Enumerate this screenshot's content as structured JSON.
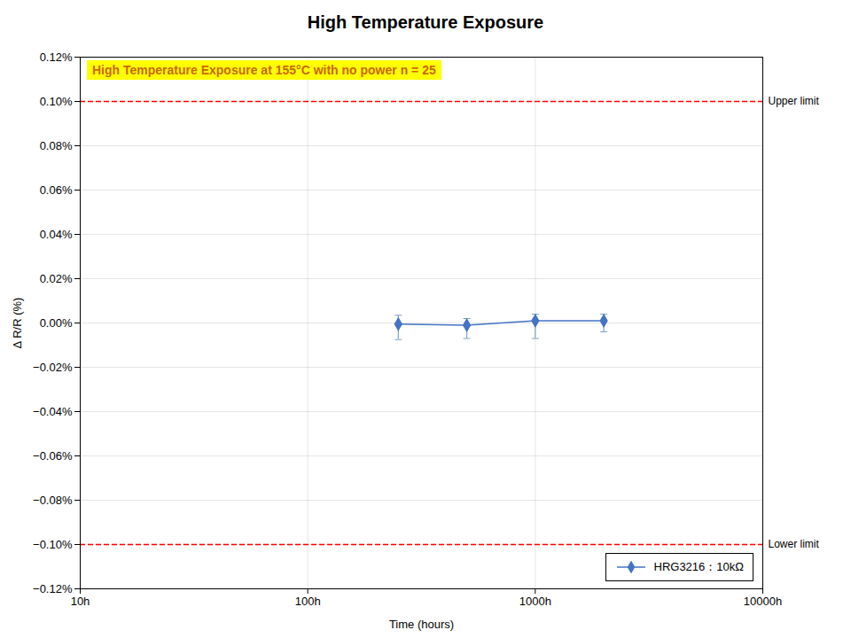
{
  "chart_data": {
    "type": "line",
    "title": "High Temperature Exposure",
    "xlabel": "Time (hours)",
    "ylabel": "Δ R/R (%)",
    "log": "x",
    "x": [
      250,
      500,
      1000,
      2000
    ],
    "series": [
      {
        "name": "HRG3216：10kΩ",
        "color": "#4472C4",
        "error_color": "#7BA0C4",
        "marker": "diamond",
        "line_style": "solid",
        "values": [
          -0.0005,
          -0.001,
          0.001,
          0.001
        ],
        "error_upper": [
          0.004,
          0.003,
          0.003,
          0.003
        ],
        "error_lower": [
          0.007,
          0.006,
          0.008,
          0.005
        ]
      }
    ],
    "reference_lines": [
      {
        "value": 0.1,
        "label": "Upper limit",
        "color": "#FF0000",
        "line_style": "dashed"
      },
      {
        "value": -0.1,
        "label": "Lower limit",
        "color": "#FF0000",
        "line_style": "dashed"
      }
    ],
    "annotations": [
      {
        "text": "High Temperature Exposure at 155°C with no power  n = 25",
        "color": "#CC6600",
        "background": "#FFFF00"
      }
    ],
    "xlim": [
      10,
      10000
    ],
    "xticks": [
      {
        "value": 10,
        "label": "10h"
      },
      {
        "value": 100,
        "label": "100h"
      },
      {
        "value": 1000,
        "label": "1000h"
      },
      {
        "value": 10000,
        "label": "10000h"
      }
    ],
    "ylim": [
      -0.12,
      0.12
    ],
    "yticks": [
      {
        "value": -0.12,
        "label": "−0.12%"
      },
      {
        "value": -0.1,
        "label": "−0.10%"
      },
      {
        "value": -0.08,
        "label": "−0.08%"
      },
      {
        "value": -0.06,
        "label": "−0.06%"
      },
      {
        "value": -0.04,
        "label": "−0.04%"
      },
      {
        "value": -0.02,
        "label": "−0.02%"
      },
      {
        "value": 0.0,
        "label": "0.00%"
      },
      {
        "value": 0.02,
        "label": "0.02%"
      },
      {
        "value": 0.04,
        "label": "0.04%"
      },
      {
        "value": 0.06,
        "label": "0.06%"
      },
      {
        "value": 0.08,
        "label": "0.08%"
      },
      {
        "value": 0.1,
        "label": "0.10%"
      },
      {
        "value": 0.12,
        "label": "0.12%"
      }
    ],
    "grid": true,
    "legend": "lower right"
  }
}
